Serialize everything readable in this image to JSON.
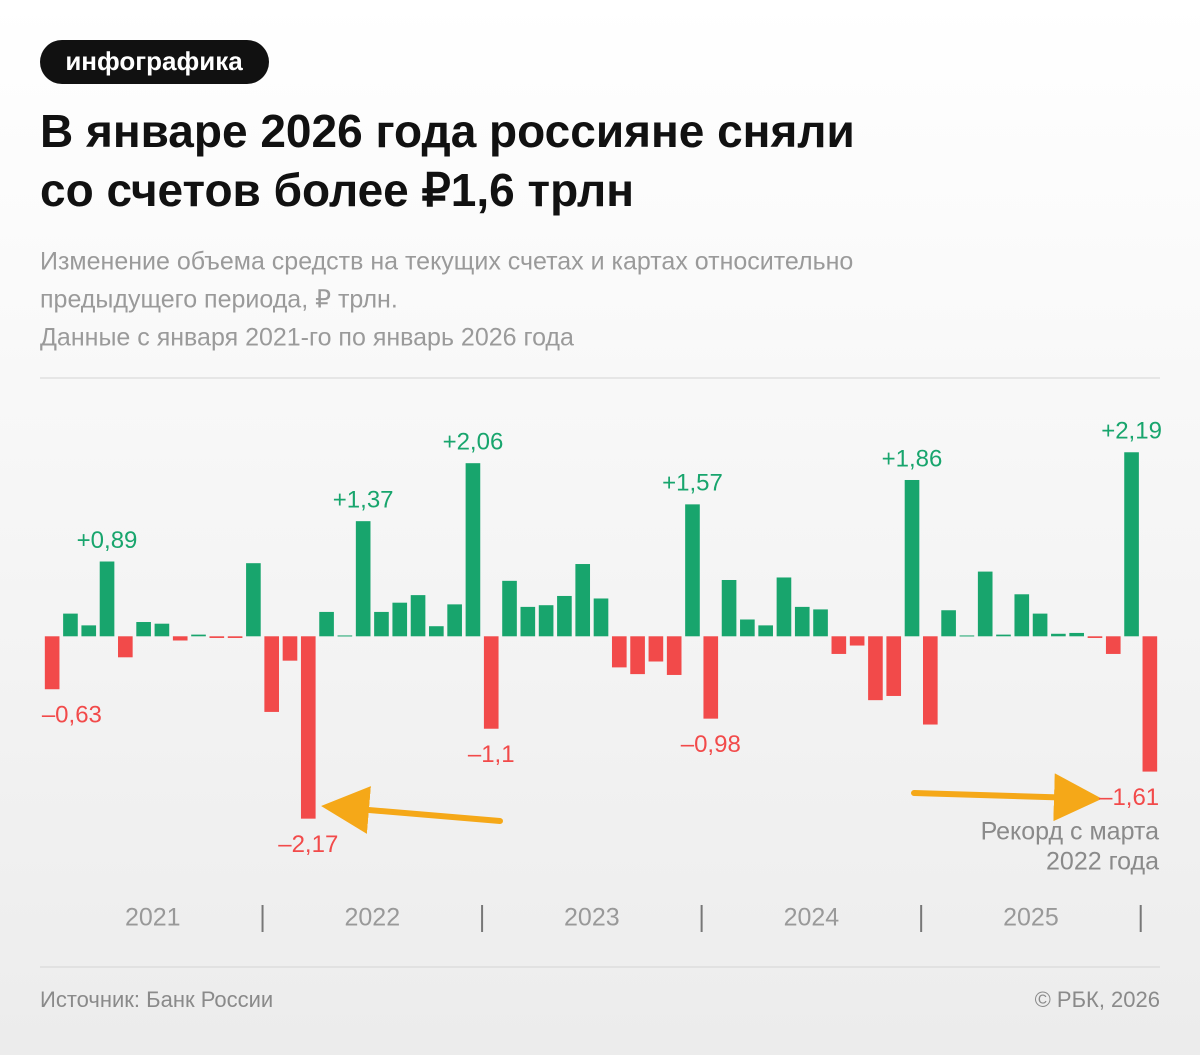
{
  "badge": "инфографика",
  "chart_data": {
    "type": "bar",
    "title": [
      "В январе 2026 года россияне сняли",
      "со счетов более ₽1,6 трлн"
    ],
    "subtitle": [
      "Изменение объема средств на текущих счетах и картах относительно",
      "предыдущего периода, ₽ трлн.",
      "Данные с января 2021-го по январь 2026 года"
    ],
    "year_labels": [
      "2021",
      "2022",
      "2023",
      "2024",
      "2025"
    ],
    "values": [
      -0.63,
      0.27,
      0.13,
      0.89,
      -0.25,
      0.17,
      0.15,
      -0.05,
      0.02,
      -0.02,
      -0.02,
      0.87,
      -0.9,
      -0.29,
      -2.17,
      0.29,
      0.01,
      1.37,
      0.29,
      0.4,
      0.49,
      0.12,
      0.38,
      2.06,
      -1.1,
      0.66,
      0.35,
      0.37,
      0.48,
      0.86,
      0.45,
      -0.37,
      -0.45,
      -0.3,
      -0.46,
      1.57,
      -0.98,
      0.67,
      0.2,
      0.13,
      0.7,
      0.35,
      0.32,
      -0.21,
      -0.11,
      -0.76,
      -0.71,
      1.86,
      -1.05,
      0.31,
      0.01,
      0.77,
      0.02,
      0.5,
      0.27,
      0.03,
      0.04,
      -0.02,
      -0.21,
      2.19,
      -1.61
    ],
    "value_labels": [
      "–0,63",
      null,
      null,
      "+0,89",
      null,
      null,
      null,
      null,
      null,
      null,
      null,
      null,
      null,
      null,
      "–2,17",
      null,
      null,
      "+1,37",
      null,
      null,
      null,
      null,
      null,
      "+2,06",
      "–1,1",
      null,
      null,
      null,
      null,
      null,
      null,
      null,
      null,
      null,
      null,
      "+1,57",
      "–0,98",
      null,
      null,
      null,
      null,
      null,
      null,
      null,
      null,
      null,
      null,
      "+1,86",
      null,
      null,
      null,
      null,
      null,
      null,
      null,
      null,
      null,
      null,
      null,
      "+2,19",
      "–1,61"
    ],
    "positive_color": "#18a56d",
    "negative_color": "#f24a4a",
    "ylim": [
      -2.9,
      2.8
    ],
    "annotation": [
      "Рекорд с марта",
      "2022 года"
    ]
  },
  "footer": {
    "source": "Источник: Банк России",
    "copyright": "© РБК, 2026"
  }
}
